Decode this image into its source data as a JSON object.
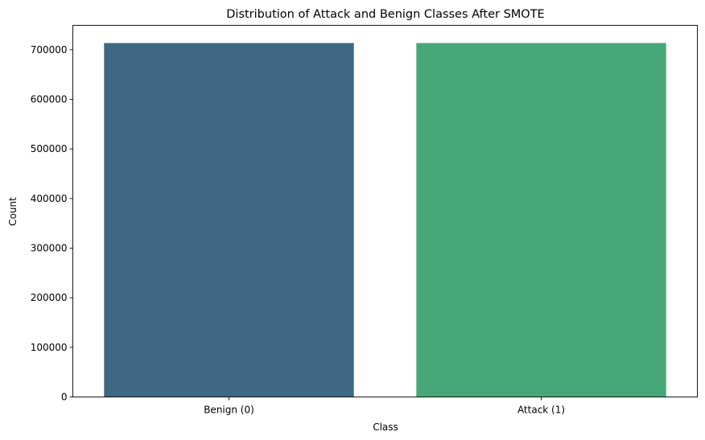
{
  "chart_data": {
    "type": "bar",
    "title": "Distribution of Attack and Benign Classes After SMOTE",
    "xlabel": "Class",
    "ylabel": "Count",
    "categories": [
      "Benign (0)",
      "Attack (1)"
    ],
    "values": [
      713500,
      713500
    ],
    "colors": [
      "#3e6783",
      "#46a878"
    ],
    "ylim": [
      0,
      749175
    ],
    "yticks": [
      0,
      100000,
      200000,
      300000,
      400000,
      500000,
      600000,
      700000
    ],
    "grid": false,
    "legend": "none"
  }
}
